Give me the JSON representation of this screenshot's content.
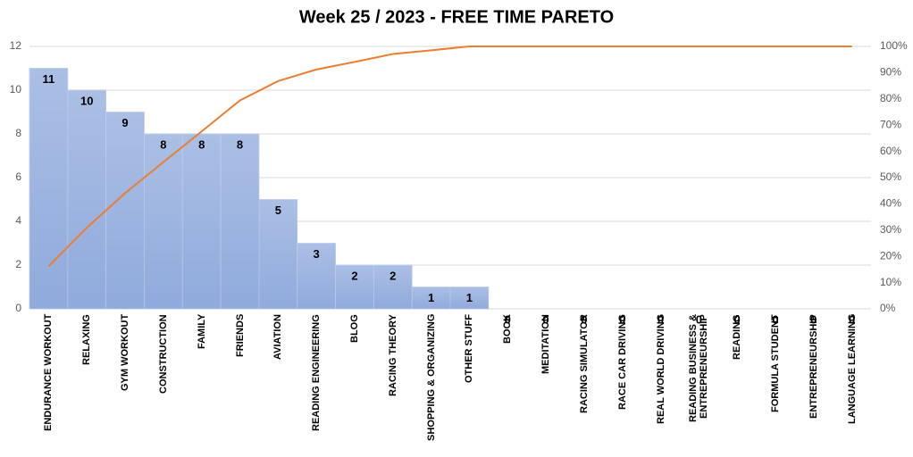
{
  "chart_data": {
    "type": "pareto",
    "title": "Week 25 / 2023 - FREE TIME PARETO",
    "categories": [
      "ENDURANCE WORKOUT",
      "RELAXING",
      "GYM WORKOUT",
      "CONSTRUCTION",
      "FAMILY",
      "FRIENDS",
      "AVIATION",
      "READING ENGINEERING",
      "BLOG",
      "RACING THEORY",
      "SHOPPING & ORGANIZING",
      "OTHER STUFF",
      "BOOK",
      "MEDITATION",
      "RACING SIMULATOR",
      "RACE CAR DRIVING",
      "REAL WORLD DRIVING",
      "READING BUSINESS & ENTREPRENEURSHIP",
      "READING",
      "FORMULA STUDENT",
      "ENTREPRENEURSHIP",
      "LANGUAGE LEARNING"
    ],
    "series": [
      {
        "type": "bar",
        "color": "#8faadc",
        "values": [
          11,
          10,
          9,
          8,
          8,
          8,
          5,
          3,
          2,
          2,
          1,
          1,
          0,
          0,
          0,
          0,
          0,
          0,
          0,
          0,
          0,
          0
        ]
      },
      {
        "type": "line",
        "axis": "y2",
        "color": "#ed7d31",
        "values": [
          16.2,
          30.9,
          44.1,
          55.9,
          67.6,
          79.4,
          86.8,
          91.2,
          94.1,
          97.1,
          98.5,
          100,
          100,
          100,
          100,
          100,
          100,
          100,
          100,
          100,
          100,
          100
        ]
      }
    ],
    "ylim": [
      0,
      12
    ],
    "yticks": [
      0,
      2,
      4,
      6,
      8,
      10,
      12
    ],
    "y2lim": [
      0,
      100
    ],
    "y2ticks": [
      {
        "value": 0,
        "label": "0%"
      },
      {
        "value": 10,
        "label": "10%"
      },
      {
        "value": 20,
        "label": "20%"
      },
      {
        "value": 30,
        "label": "30%"
      },
      {
        "value": 40,
        "label": "40%"
      },
      {
        "value": 50,
        "label": "50%"
      },
      {
        "value": 60,
        "label": "60%"
      },
      {
        "value": 70,
        "label": "70%"
      },
      {
        "value": 80,
        "label": "80%"
      },
      {
        "value": 90,
        "label": "90%"
      },
      {
        "value": 100,
        "label": "100%"
      }
    ],
    "grid": true
  }
}
